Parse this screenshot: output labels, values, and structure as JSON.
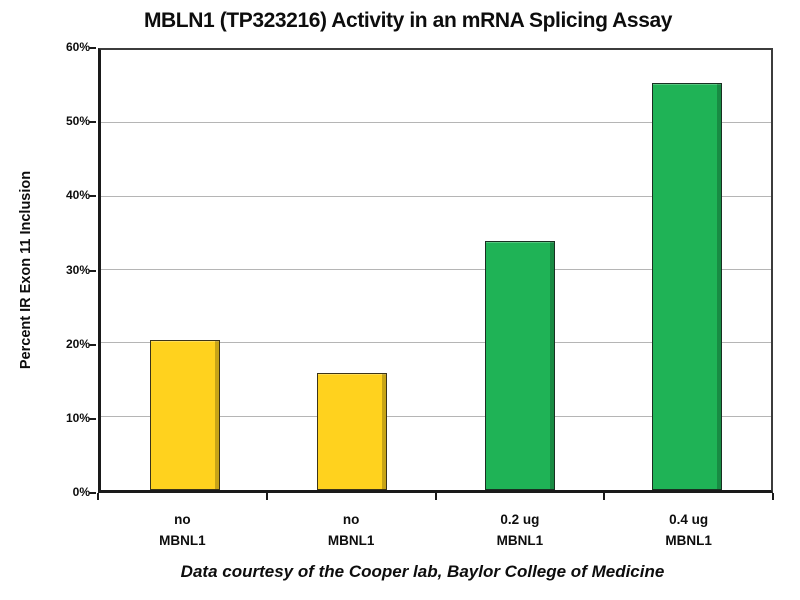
{
  "figure": {
    "background": "#ffffff"
  },
  "chart_data": {
    "type": "bar",
    "title": "MBLN1 (TP323216) Activity in an mRNA Splicing Assay",
    "ylabel": "Percent IR Exon 11 Inclusion",
    "xlabel": "",
    "categories": [
      "no MBNL1",
      "no MBNL1",
      "0.2 ug MBNL1",
      "0.4 ug MBNL1"
    ],
    "category_lines": [
      [
        "no",
        "MBNL1"
      ],
      [
        "no",
        "MBNL1"
      ],
      [
        "0.2 ug",
        "MBNL1"
      ],
      [
        "0.4 ug",
        "MBNL1"
      ]
    ],
    "values": [
      20.5,
      16,
      34,
      55.5
    ],
    "bar_colors": [
      "#FFD21E",
      "#FFD21E",
      "#1FB356",
      "#1FB356"
    ],
    "ylim": [
      0,
      60
    ],
    "ytick_step": 10,
    "ytick_labels": [
      "0%",
      "10%",
      "20%",
      "30%",
      "40%",
      "50%",
      "60%"
    ],
    "grid": true,
    "legend": "none",
    "footnote": "Data courtesy of the Cooper lab, Baylor College of Medicine",
    "colors": {
      "grid": "#b5b5b5",
      "axis": "#1a1a1a",
      "plot_border": "#3c3c3c",
      "text": "#111111"
    }
  }
}
